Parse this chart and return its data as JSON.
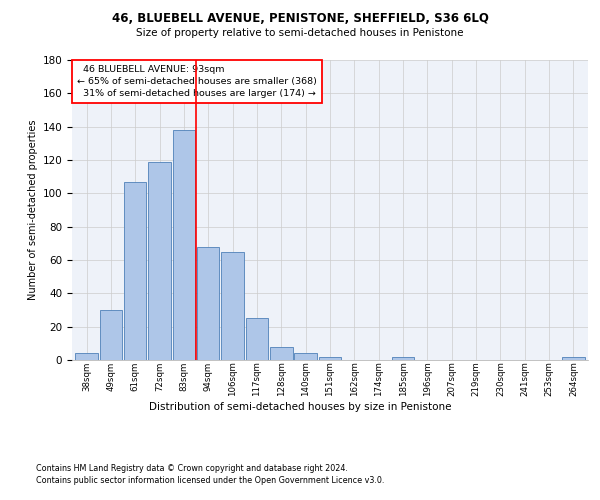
{
  "title": "46, BLUEBELL AVENUE, PENISTONE, SHEFFIELD, S36 6LQ",
  "subtitle": "Size of property relative to semi-detached houses in Penistone",
  "xlabel": "Distribution of semi-detached houses by size in Penistone",
  "ylabel": "Number of semi-detached properties",
  "bin_labels": [
    "38sqm",
    "49sqm",
    "61sqm",
    "72sqm",
    "83sqm",
    "94sqm",
    "106sqm",
    "117sqm",
    "128sqm",
    "140sqm",
    "151sqm",
    "162sqm",
    "174sqm",
    "185sqm",
    "196sqm",
    "207sqm",
    "219sqm",
    "230sqm",
    "241sqm",
    "253sqm",
    "264sqm"
  ],
  "counts": [
    4,
    30,
    107,
    119,
    138,
    68,
    65,
    25,
    8,
    4,
    2,
    0,
    0,
    2,
    0,
    0,
    0,
    0,
    0,
    0,
    2
  ],
  "bar_color": "#aec6e8",
  "bar_edge_color": "#4f81b9",
  "grid_color": "#cccccc",
  "vline_color": "red",
  "property_value": "93sqm",
  "pct_smaller": 65,
  "n_smaller": 368,
  "pct_larger": 31,
  "n_larger": 174,
  "ylim": [
    0,
    180
  ],
  "yticks": [
    0,
    20,
    40,
    60,
    80,
    100,
    120,
    140,
    160,
    180
  ],
  "footnote1": "Contains HM Land Registry data © Crown copyright and database right 2024.",
  "footnote2": "Contains public sector information licensed under the Open Government Licence v3.0.",
  "background_color": "#eef2f9"
}
